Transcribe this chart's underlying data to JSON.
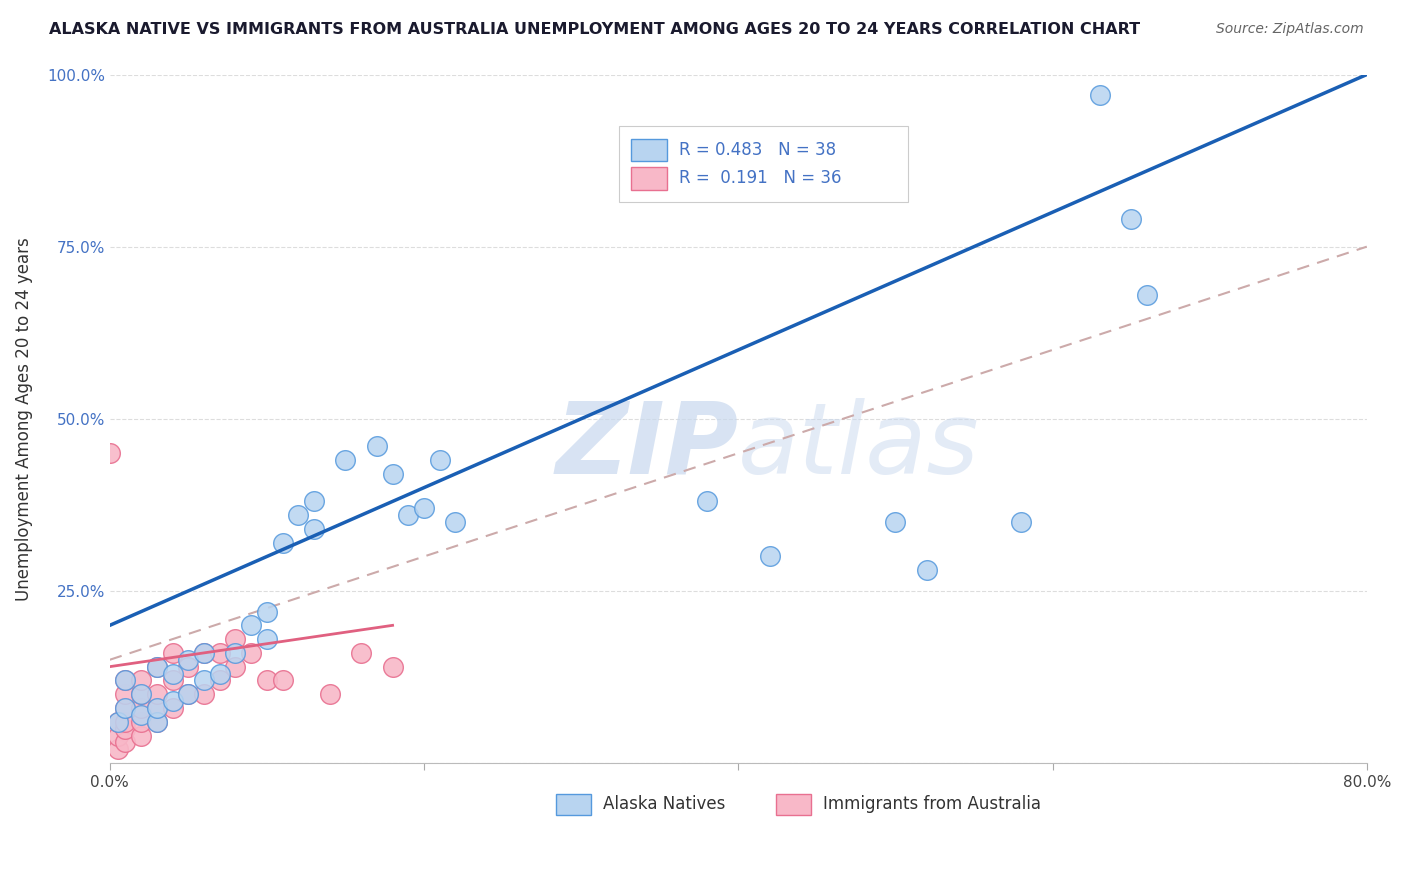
{
  "title": "ALASKA NATIVE VS IMMIGRANTS FROM AUSTRALIA UNEMPLOYMENT AMONG AGES 20 TO 24 YEARS CORRELATION CHART",
  "source": "Source: ZipAtlas.com",
  "ylabel": "Unemployment Among Ages 20 to 24 years",
  "xlim": [
    0.0,
    0.8
  ],
  "ylim": [
    0.0,
    1.0
  ],
  "xtick_vals": [
    0.0,
    0.2,
    0.4,
    0.6,
    0.8
  ],
  "xtick_labels": [
    "0.0%",
    "",
    "",
    "",
    "80.0%"
  ],
  "ytick_vals": [
    0.0,
    0.25,
    0.5,
    0.75,
    1.0
  ],
  "ytick_labels": [
    "",
    "25.0%",
    "50.0%",
    "75.0%",
    "100.0%"
  ],
  "legend_labels": [
    "Alaska Natives",
    "Immigrants from Australia"
  ],
  "R_alaska": 0.483,
  "N_alaska": 38,
  "R_australia": 0.191,
  "N_australia": 36,
  "alaska_face_color": "#b8d4f0",
  "alaska_edge_color": "#5599dd",
  "australia_face_color": "#f8b8c8",
  "australia_edge_color": "#e87090",
  "trendline_alaska_color": "#1a5fb4",
  "trendline_australia_pink_color": "#e06080",
  "trendline_dashed_color": "#ccaaaa",
  "watermark_color": "#c8d8ee",
  "background_color": "#ffffff",
  "grid_color": "#dddddd",
  "alaska_x": [
    0.005,
    0.01,
    0.01,
    0.02,
    0.02,
    0.03,
    0.03,
    0.03,
    0.04,
    0.04,
    0.05,
    0.05,
    0.06,
    0.06,
    0.07,
    0.08,
    0.09,
    0.1,
    0.1,
    0.11,
    0.12,
    0.13,
    0.13,
    0.15,
    0.17,
    0.18,
    0.19,
    0.2,
    0.21,
    0.22,
    0.38,
    0.42,
    0.5,
    0.52,
    0.58,
    0.63,
    0.65,
    0.66
  ],
  "alaska_y": [
    0.06,
    0.08,
    0.12,
    0.07,
    0.1,
    0.06,
    0.08,
    0.14,
    0.09,
    0.13,
    0.1,
    0.15,
    0.12,
    0.16,
    0.13,
    0.16,
    0.2,
    0.18,
    0.22,
    0.32,
    0.36,
    0.34,
    0.38,
    0.44,
    0.46,
    0.42,
    0.36,
    0.37,
    0.44,
    0.35,
    0.38,
    0.3,
    0.35,
    0.28,
    0.35,
    0.97,
    0.79,
    0.68
  ],
  "australia_x": [
    0.0,
    0.005,
    0.005,
    0.005,
    0.01,
    0.01,
    0.01,
    0.01,
    0.01,
    0.01,
    0.02,
    0.02,
    0.02,
    0.02,
    0.02,
    0.03,
    0.03,
    0.03,
    0.03,
    0.04,
    0.04,
    0.04,
    0.05,
    0.05,
    0.06,
    0.06,
    0.07,
    0.07,
    0.08,
    0.08,
    0.09,
    0.1,
    0.11,
    0.14,
    0.16,
    0.18
  ],
  "australia_y": [
    0.45,
    0.02,
    0.04,
    0.06,
    0.03,
    0.05,
    0.06,
    0.08,
    0.1,
    0.12,
    0.04,
    0.06,
    0.08,
    0.1,
    0.12,
    0.06,
    0.08,
    0.1,
    0.14,
    0.08,
    0.12,
    0.16,
    0.1,
    0.14,
    0.1,
    0.16,
    0.12,
    0.16,
    0.14,
    0.18,
    0.16,
    0.12,
    0.12,
    0.1,
    0.16,
    0.14
  ],
  "trendline_alaska_x0": 0.0,
  "trendline_alaska_y0": 0.2,
  "trendline_alaska_x1": 0.8,
  "trendline_alaska_y1": 1.0,
  "trendline_pink_dashed_x0": 0.0,
  "trendline_pink_dashed_y0": 0.15,
  "trendline_pink_dashed_x1": 0.8,
  "trendline_pink_dashed_y1": 0.75,
  "trendline_pink_solid_x0": 0.0,
  "trendline_pink_solid_y0": 0.14,
  "trendline_pink_solid_x1": 0.18,
  "trendline_pink_solid_y1": 0.2
}
